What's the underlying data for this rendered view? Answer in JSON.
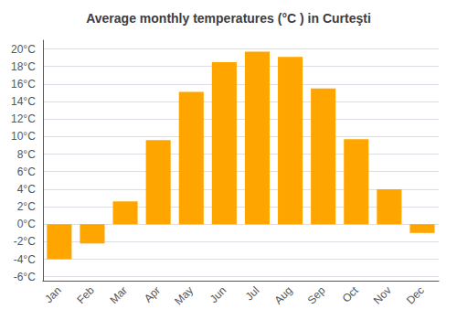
{
  "chart_data": {
    "type": "bar",
    "title": "Average monthly temperatures (°C ) in Curteşti",
    "categories": [
      "Jan",
      "Feb",
      "Mar",
      "Apr",
      "May",
      "Jun",
      "Jul",
      "Aug",
      "Sep",
      "Oct",
      "Nov",
      "Dec"
    ],
    "values": [
      -4.0,
      -2.2,
      2.6,
      9.6,
      15.1,
      18.5,
      19.7,
      19.1,
      15.5,
      9.7,
      4.0,
      -1.0
    ],
    "color": "#FFA500",
    "ylim": [
      -6.5,
      21
    ],
    "yticks": [
      {
        "value": -6,
        "label": "-6°C"
      },
      {
        "value": -4,
        "label": "-4°C"
      },
      {
        "value": -2,
        "label": "-2°C"
      },
      {
        "value": 0,
        "label": "0°C"
      },
      {
        "value": 2,
        "label": "2°C"
      },
      {
        "value": 4,
        "label": "4°C"
      },
      {
        "value": 6,
        "label": "6°C"
      },
      {
        "value": 8,
        "label": "8°C"
      },
      {
        "value": 10,
        "label": "10°C"
      },
      {
        "value": 12,
        "label": "12°C"
      },
      {
        "value": 14,
        "label": "14°C"
      },
      {
        "value": 16,
        "label": "16°C"
      },
      {
        "value": 18,
        "label": "18°C"
      },
      {
        "value": 20,
        "label": "20°C"
      }
    ],
    "grid": true
  }
}
